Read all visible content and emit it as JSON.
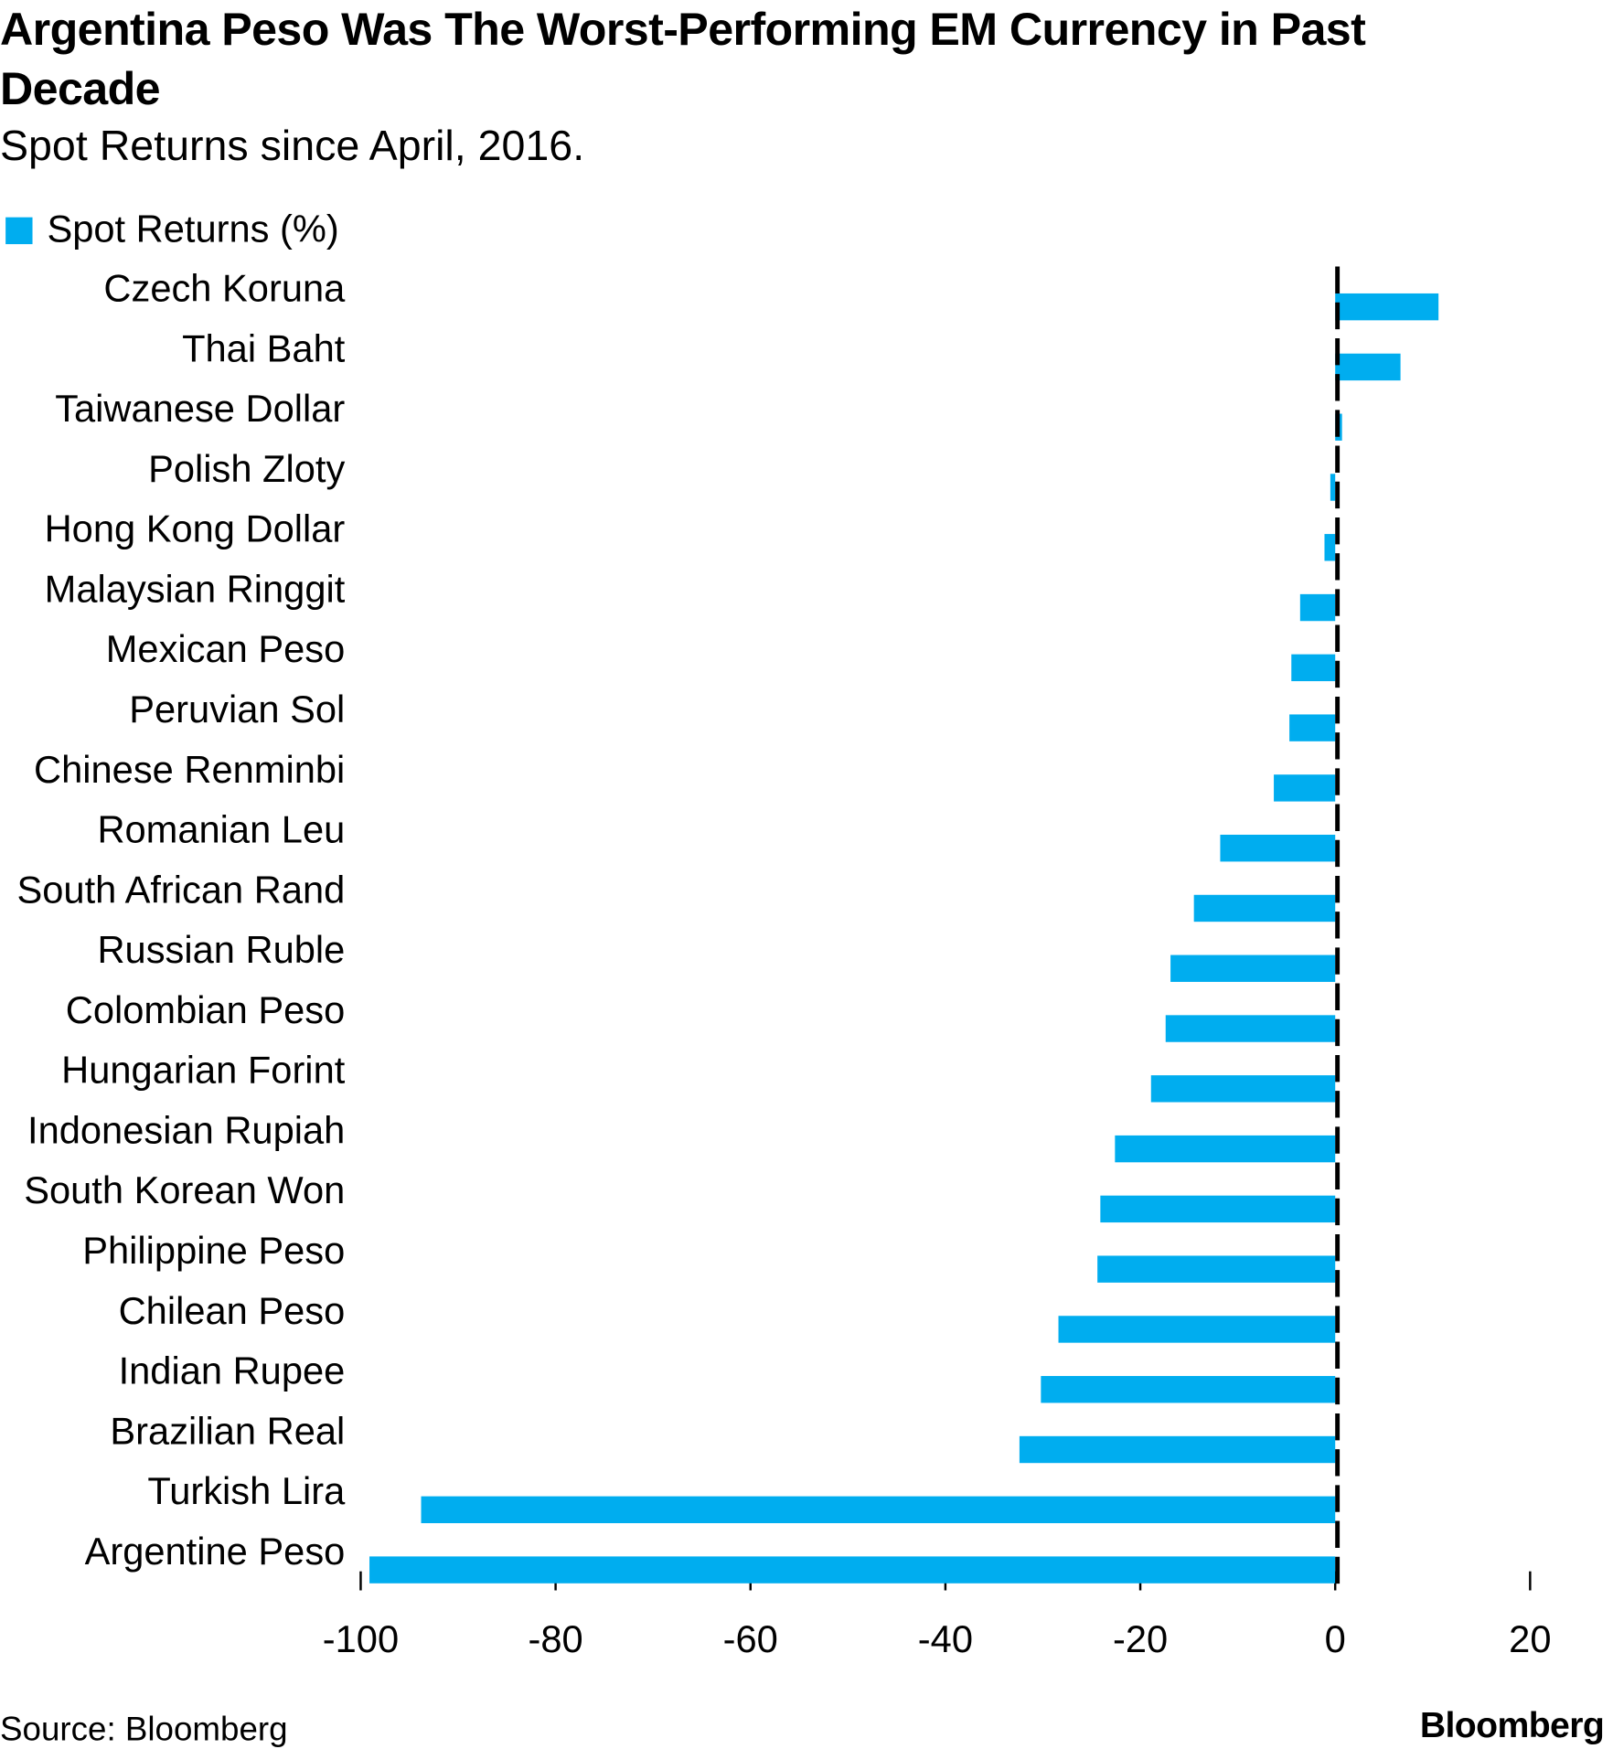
{
  "chart_data": {
    "type": "barh",
    "title": "Argentina Peso Was The Worst-Performing EM Currency in Past Decade",
    "subtitle": "Spot Returns since April, 2016.",
    "categories": [
      "Czech Koruna",
      "Thai Baht",
      "Taiwanese Dollar",
      "Polish Zloty",
      "Hong Kong Dollar",
      "Malaysian Ringgit",
      "Mexican Peso",
      "Peruvian Sol",
      "Chinese Renminbi",
      "Romanian Leu",
      "South African Rand",
      "Russian Ruble",
      "Colombian Peso",
      "Hungarian Forint",
      "Indonesian Rupiah",
      "South Korean Won",
      "Philippine Peso",
      "Chilean Peso",
      "Indian Rupee",
      "Brazilian Real",
      "Turkish Lira",
      "Argentine Peso"
    ],
    "series": [
      {
        "name": "Spot Returns (%)",
        "color": "#00adef",
        "values": [
          10.6,
          6.7,
          0.7,
          -0.5,
          -1.1,
          -3.6,
          -4.5,
          -4.7,
          -6.3,
          -11.8,
          -14.5,
          -16.9,
          -17.4,
          -18.9,
          -22.6,
          -24.1,
          -24.4,
          -28.4,
          -30.2,
          -32.4,
          -93.8,
          -99.1
        ]
      }
    ],
    "xlim": [
      -100,
      20
    ],
    "xticks": [
      -100,
      -80,
      -60,
      -40,
      -20,
      0,
      20
    ],
    "legend": "top-left",
    "grid": false,
    "source": "Source: Bloomberg",
    "logo": "Bloomberg"
  }
}
